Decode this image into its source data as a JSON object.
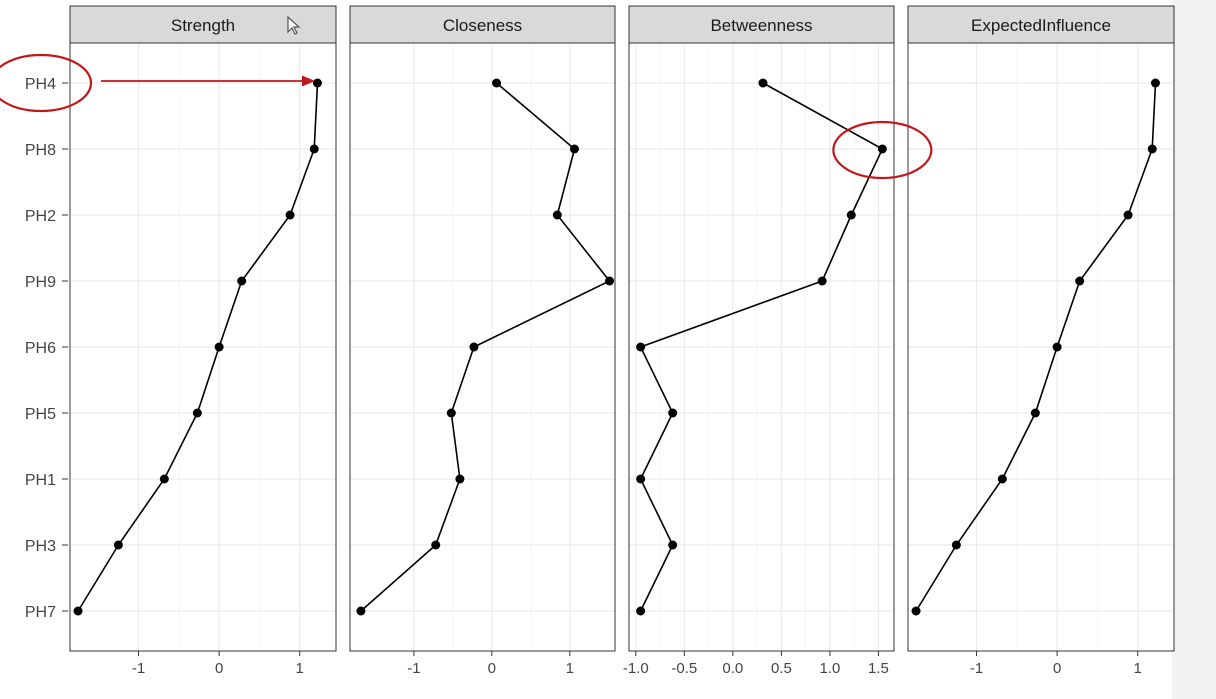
{
  "chart_data": {
    "type": "line",
    "layout": "facets-horizontal",
    "categories": [
      "PH4",
      "PH8",
      "PH2",
      "PH9",
      "PH6",
      "PH5",
      "PH1",
      "PH3",
      "PH7"
    ],
    "facets": [
      {
        "name": "Strength",
        "values": [
          1.22,
          1.18,
          0.88,
          0.28,
          0.0,
          -0.27,
          -0.68,
          -1.25,
          -1.75
        ],
        "xlim": [
          -1.85,
          1.45
        ],
        "xticks": [
          -1,
          0,
          1
        ],
        "xtick_labels": [
          "-1",
          "0",
          "1"
        ]
      },
      {
        "name": "Closeness",
        "values": [
          0.06,
          1.06,
          0.84,
          1.51,
          -0.23,
          -0.52,
          -0.41,
          -0.72,
          -1.68
        ],
        "xlim": [
          -1.82,
          1.58
        ],
        "xticks": [
          -1,
          0,
          1
        ],
        "xtick_labels": [
          "-1",
          "0",
          "1"
        ]
      },
      {
        "name": "Betweenness",
        "values": [
          0.31,
          1.54,
          1.22,
          0.92,
          -0.95,
          -0.62,
          -0.95,
          -0.62,
          -0.95
        ],
        "xlim": [
          -1.07,
          1.66
        ],
        "xticks": [
          -1.0,
          -0.5,
          0.0,
          0.5,
          1.0,
          1.5
        ],
        "xtick_labels": [
          "-1.0",
          "-0.5",
          "0.0",
          "0.5",
          "1.0",
          "1.5"
        ]
      },
      {
        "name": "ExpectedInfluence",
        "values": [
          1.22,
          1.18,
          0.88,
          0.28,
          0.0,
          -0.27,
          -0.68,
          -1.25,
          -1.75
        ],
        "xlim": [
          -1.85,
          1.45
        ],
        "xticks": [
          -1,
          0,
          1
        ],
        "xtick_labels": [
          "-1",
          "0",
          "1"
        ]
      }
    ],
    "grid": true,
    "annotations": [
      {
        "type": "ellipse",
        "target": "PH4 label",
        "color": "#c0181c"
      },
      {
        "type": "arrow",
        "from": "PH4 label",
        "to": "Strength PH4 point",
        "color": "#c0181c"
      },
      {
        "type": "ellipse",
        "target": "Betweenness PH8 point",
        "color": "#c0181c"
      }
    ]
  },
  "colors": {
    "strip_bg": "#d9d9d9",
    "panel_border": "#333333",
    "grid_major": "#ebebeb",
    "grid_minor": "#f5f5f5",
    "series": "#000000",
    "annotation": "#c0181c"
  }
}
